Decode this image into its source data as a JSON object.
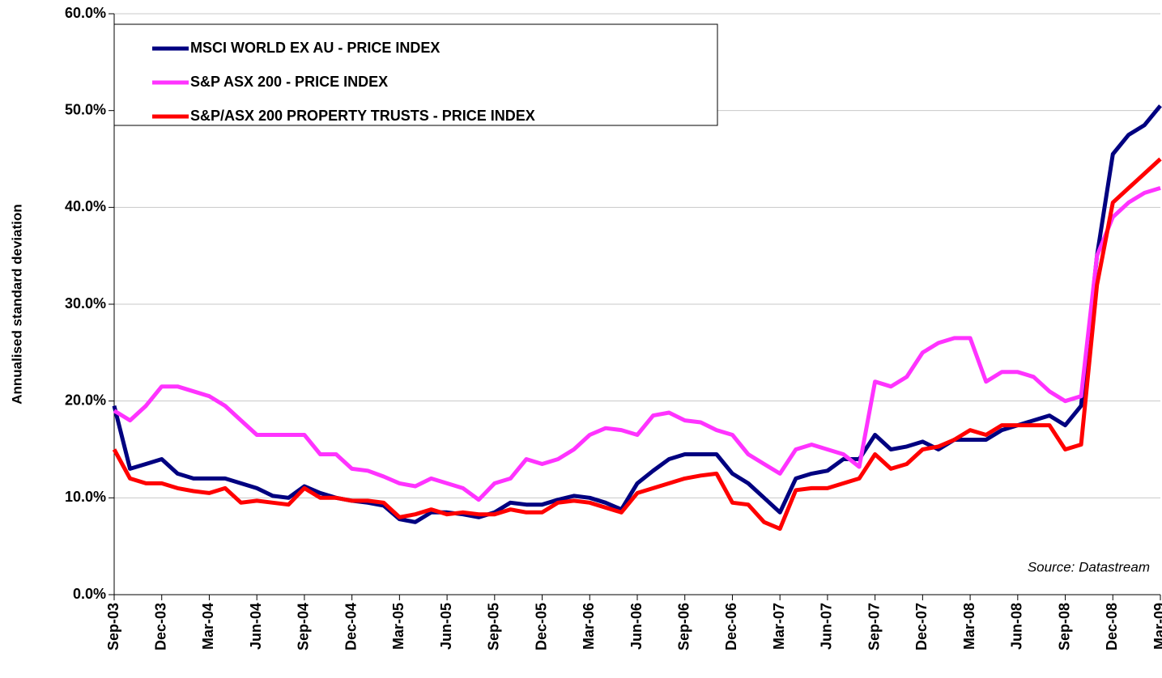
{
  "chart_data": {
    "type": "line",
    "y_label": "Annualised standard deviation",
    "annotation": "Source: Datastream",
    "categories": [
      "Sep-03",
      null,
      null,
      "Dec-03",
      null,
      null,
      "Mar-04",
      null,
      null,
      "Jun-04",
      null,
      null,
      "Sep-04",
      null,
      null,
      "Dec-04",
      null,
      null,
      "Mar-05",
      null,
      null,
      "Jun-05",
      null,
      null,
      "Sep-05",
      null,
      null,
      "Dec-05",
      null,
      null,
      "Mar-06",
      null,
      null,
      "Jun-06",
      null,
      null,
      "Sep-06",
      null,
      null,
      "Dec-06",
      null,
      null,
      "Mar-07",
      null,
      null,
      "Jun-07",
      null,
      null,
      "Sep-07",
      null,
      null,
      "Dec-07",
      null,
      null,
      "Mar-08",
      null,
      null,
      "Jun-08",
      null,
      null,
      "Sep-08",
      null,
      null,
      "Dec-08",
      null,
      null,
      "Mar-09"
    ],
    "series": [
      {
        "name": "MSCI WORLD EX AU - PRICE INDEX",
        "color": "#000080",
        "values": [
          19.5,
          13,
          13.5,
          14,
          12.5,
          12,
          12,
          12,
          11.5,
          11,
          10.2,
          10,
          11.2,
          10.5,
          10,
          9.7,
          9.5,
          9.2,
          7.8,
          7.5,
          8.5,
          8.5,
          8.3,
          8.0,
          8.5,
          9.5,
          9.3,
          9.3,
          9.8,
          10.2,
          10,
          9.5,
          8.8,
          11.5,
          12.8,
          14,
          14.5,
          14.5,
          14.5,
          12.5,
          11.5,
          10,
          8.5,
          12,
          12.5,
          12.8,
          14,
          14,
          16.5,
          15,
          15.3,
          15.8,
          15,
          16,
          16,
          16,
          17,
          17.5,
          18,
          18.5,
          17.5,
          19.5,
          35,
          45.5,
          47.5,
          48.5,
          50.5
        ]
      },
      {
        "name": "S&P ASX 200 - PRICE INDEX",
        "color": "#ff33ff",
        "values": [
          19,
          18,
          19.5,
          21.5,
          21.5,
          21,
          20.5,
          19.5,
          18,
          16.5,
          16.5,
          16.5,
          16.5,
          14.5,
          14.5,
          13,
          12.8,
          12.2,
          11.5,
          11.2,
          12,
          11.5,
          11,
          9.8,
          11.5,
          12,
          14,
          13.5,
          14,
          15,
          16.5,
          17.2,
          17,
          16.5,
          18.5,
          18.8,
          18,
          17.8,
          17,
          16.5,
          14.5,
          13.5,
          12.5,
          15,
          15.5,
          15,
          14.5,
          13.2,
          22,
          21.5,
          22.5,
          25,
          26,
          26.5,
          26.5,
          22,
          23,
          23,
          22.5,
          21,
          20,
          20.5,
          35,
          39,
          40.5,
          41.5,
          42
        ]
      },
      {
        "name": "S&P/ASX 200 PROPERTY TRUSTS - PRICE INDEX",
        "color": "#ff0000",
        "values": [
          15,
          12,
          11.5,
          11.5,
          11,
          10.7,
          10.5,
          11,
          9.5,
          9.7,
          9.5,
          9.3,
          11,
          10,
          10,
          9.7,
          9.7,
          9.5,
          8.0,
          8.3,
          8.8,
          8.3,
          8.5,
          8.3,
          8.3,
          8.8,
          8.5,
          8.5,
          9.5,
          9.7,
          9.5,
          9.0,
          8.5,
          10.5,
          11,
          11.5,
          12,
          12.3,
          12.5,
          9.5,
          9.3,
          7.5,
          6.8,
          10.8,
          11,
          11,
          11.5,
          12,
          14.5,
          13,
          13.5,
          15,
          15.3,
          16,
          17,
          16.5,
          17.5,
          17.5,
          17.5,
          17.5,
          15,
          15.5,
          32,
          40.5,
          42,
          43.5,
          45
        ]
      }
    ],
    "ylim": [
      0,
      60
    ],
    "yticks": [
      {
        "value": 0,
        "label": "0.0%"
      },
      {
        "value": 10,
        "label": "10.0%"
      },
      {
        "value": 20,
        "label": "20.0%"
      },
      {
        "value": 30,
        "label": "30.0%"
      },
      {
        "value": 40,
        "label": "40.0%"
      },
      {
        "value": 50,
        "label": "50.0%"
      },
      {
        "value": 60,
        "label": "60.0%"
      }
    ],
    "grid": true,
    "legend": "top-left"
  }
}
